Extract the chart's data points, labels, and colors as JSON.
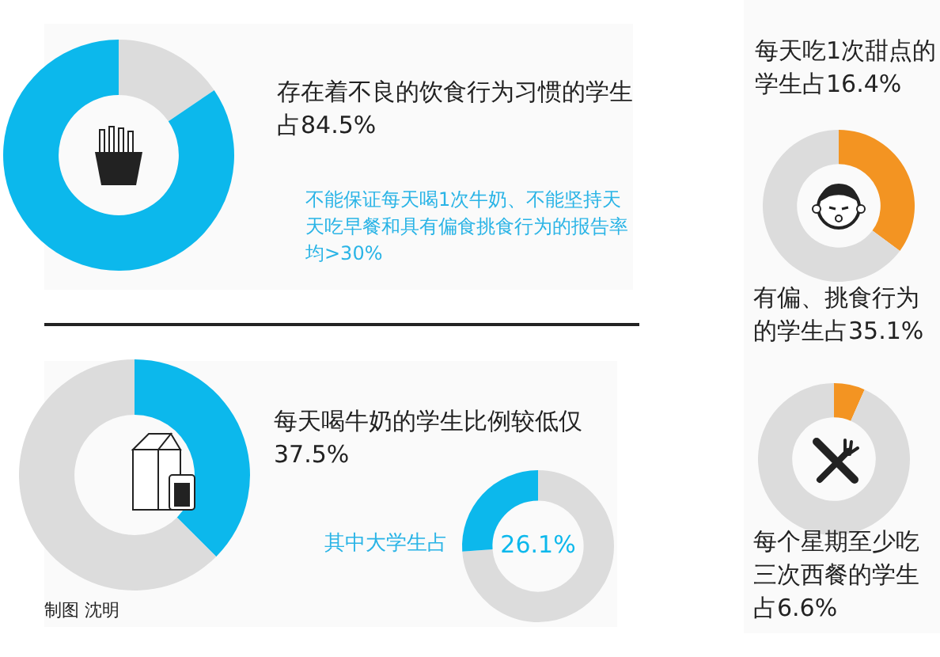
{
  "chart_data": [
    {
      "type": "donut",
      "title": "存在着不良的饮食行为习惯的学生占84.5%",
      "categories": [
        null,
        null
      ],
      "values": [
        15.5,
        84.5
      ],
      "colors": [
        "#dcdcdc",
        "#0cb8ec"
      ],
      "annotations": [
        "不能保证每天喝1次牛奶、不能坚持天天吃早餐和具有偏食挑食行为的报告率均>30%"
      ]
    },
    {
      "type": "donut",
      "title": "每天喝牛奶的学生比例较低仅37.5%",
      "categories": [
        null,
        null
      ],
      "values": [
        37.5,
        62.5
      ],
      "colors": [
        "#0cb8ec",
        "#dcdcdc"
      ],
      "annotations": [
        "制图 沈明"
      ]
    },
    {
      "type": "donut",
      "title": "其中大学生占",
      "categories": [
        null,
        null
      ],
      "values": [
        73.9,
        26.1
      ],
      "colors": [
        "#dcdcdc",
        "#0cb8ec"
      ],
      "value_labels": [
        null,
        "26.1%"
      ]
    },
    {
      "type": "other",
      "title": "每天吃1次甜点的学生占16.4%"
    },
    {
      "type": "donut",
      "title": "有偏、挑食行为的学生占35.1%",
      "categories": [
        null,
        null
      ],
      "values": [
        35.1,
        64.9
      ],
      "colors": [
        "#f39422",
        "#dcdcdc"
      ]
    },
    {
      "type": "donut",
      "title": "每个星期至少吃三次西餐的学生占6.6%",
      "categories": [
        null,
        null
      ],
      "values": [
        6.6,
        93.4
      ],
      "colors": [
        "#f39422",
        "#dcdcdc"
      ]
    }
  ]
}
